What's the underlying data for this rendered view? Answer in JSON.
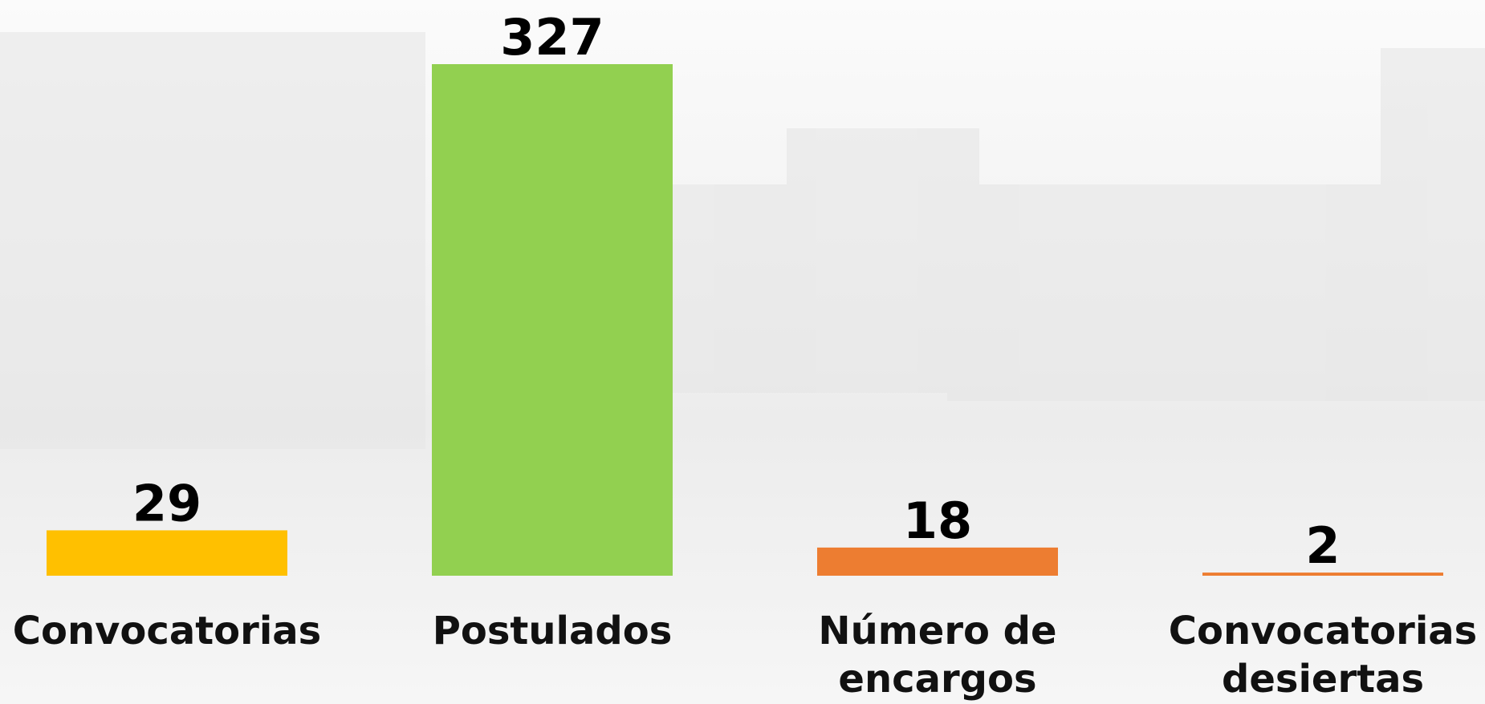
{
  "chart_data": {
    "type": "bar",
    "categories": [
      "Convocatorias",
      "Postulados",
      "Número de encargos",
      "Convocatorias desiertas"
    ],
    "values": [
      29,
      327,
      18,
      2
    ],
    "colors": [
      "#ffc000",
      "#92d050",
      "#ed7d31",
      "#ed7d31"
    ]
  }
}
